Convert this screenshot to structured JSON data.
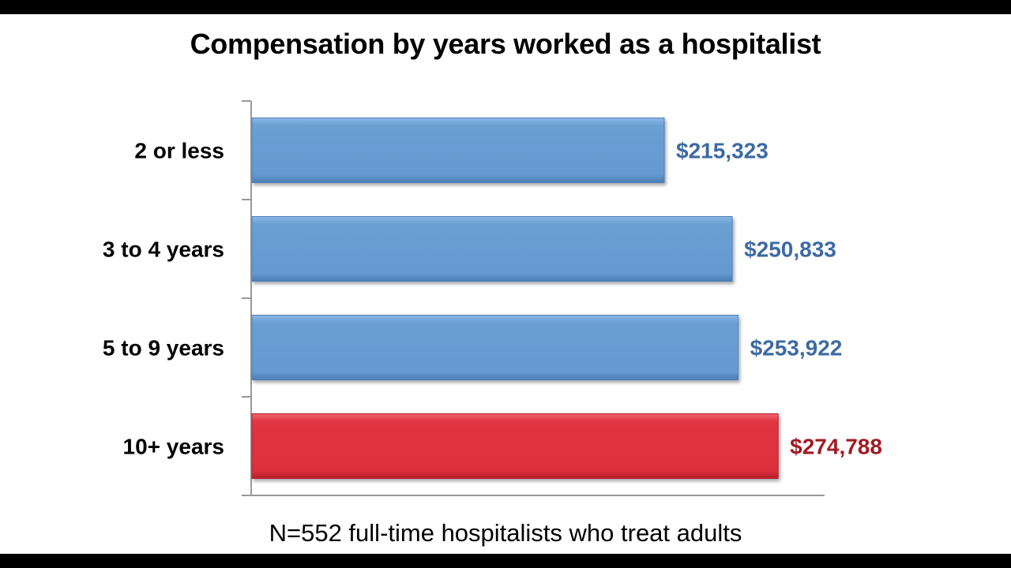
{
  "title": "Compensation by years worked as a hospitalist",
  "footnote": "N=552 full-time hospitalists who treat adults",
  "colors": {
    "default_bar": "#6a9fd4",
    "highlight_bar": "#e03442",
    "default_label": "#3d6aa3",
    "highlight_label": "#a11b23",
    "axis": "#999999"
  },
  "chart_data": {
    "type": "bar",
    "orientation": "horizontal",
    "categories": [
      "2 or less",
      "3 to 4 years",
      "5 to 9 years",
      "10+ years"
    ],
    "values": [
      215323,
      250833,
      253922,
      274788
    ],
    "value_labels": [
      "$215,323",
      "$250,833",
      "$253,922",
      "$274,788"
    ],
    "highlight": [
      false,
      false,
      false,
      true
    ],
    "xlim": [
      0,
      300000
    ],
    "title": "Compensation by years worked as a hospitalist",
    "xlabel": "",
    "ylabel": "",
    "grid": false,
    "legend": "none"
  }
}
